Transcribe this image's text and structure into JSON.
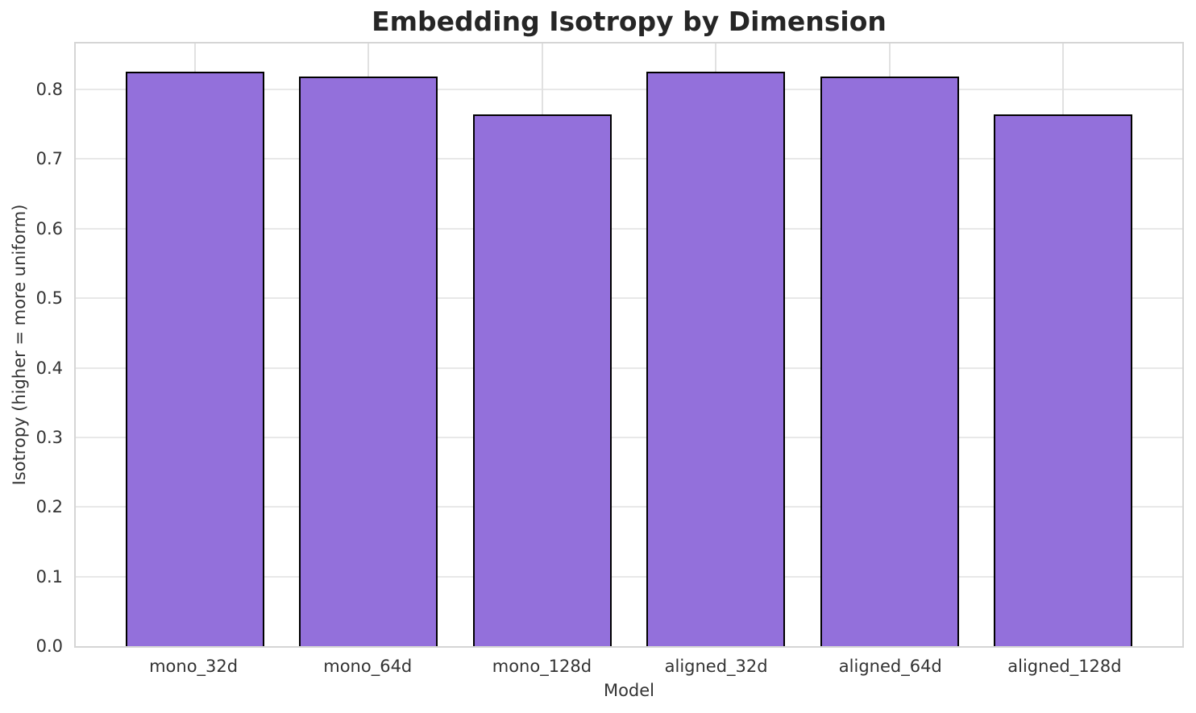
{
  "chart_data": {
    "type": "bar",
    "title": "Embedding Isotropy by Dimension",
    "xlabel": "Model",
    "ylabel": "Isotropy (higher = more uniform)",
    "categories": [
      "mono_32d",
      "mono_64d",
      "mono_128d",
      "aligned_32d",
      "aligned_64d",
      "aligned_128d"
    ],
    "values": [
      0.825,
      0.818,
      0.764,
      0.825,
      0.818,
      0.764
    ],
    "ylim": [
      0,
      0.866
    ],
    "yticks": [
      0.0,
      0.1,
      0.2,
      0.3,
      0.4,
      0.5,
      0.6,
      0.7,
      0.8
    ],
    "grid": "both",
    "legend": "none",
    "bar_color": "#9370db",
    "bar_edge_color": "#000000",
    "grid_color": "#e8e8e8",
    "spine_color": "#d5d5d5",
    "text_color": "#333333",
    "title_color": "#262626",
    "background_color": "#ffffff"
  }
}
